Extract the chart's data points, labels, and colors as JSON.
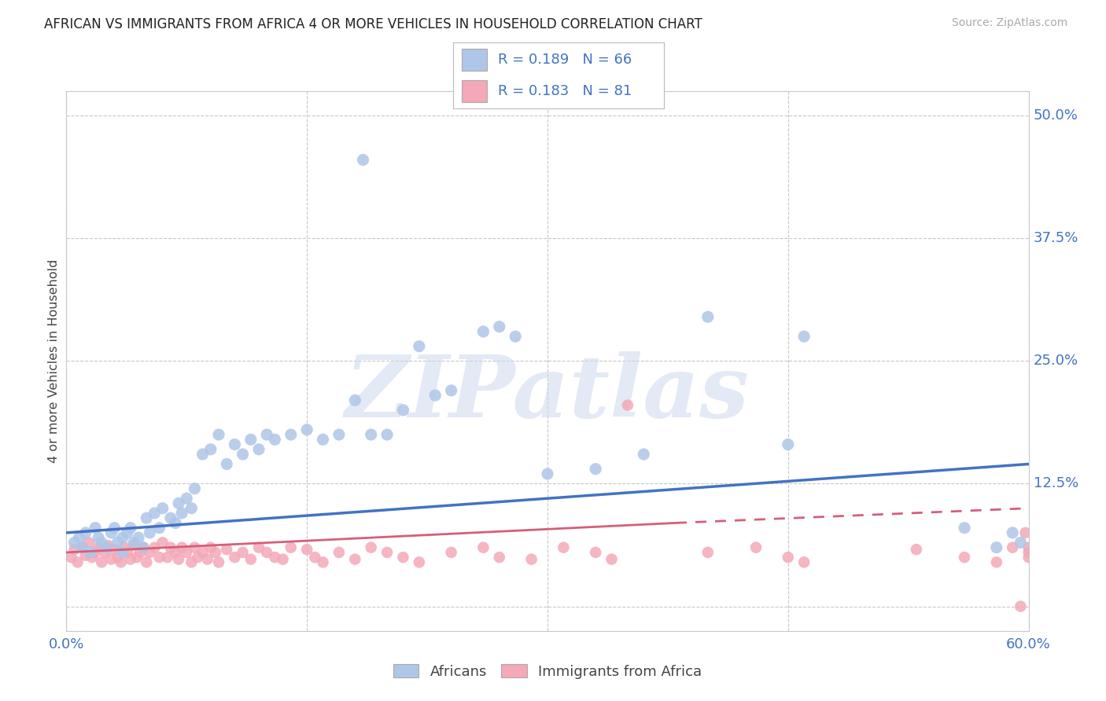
{
  "title": "AFRICAN VS IMMIGRANTS FROM AFRICA 4 OR MORE VEHICLES IN HOUSEHOLD CORRELATION CHART",
  "source": "Source: ZipAtlas.com",
  "ylabel": "4 or more Vehicles in Household",
  "legend_africans_R": "0.189",
  "legend_africans_N": "66",
  "legend_immigrants_R": "0.183",
  "legend_immigrants_N": "81",
  "color_africans": "#aec6e8",
  "color_africans_line": "#4472C4",
  "color_immigrants": "#f4a8b8",
  "color_immigrants_line": "#d4607a",
  "color_text_blue": "#4472C4",
  "color_text_pink": "#d4607a",
  "color_label_dark": "#444444",
  "watermark": "ZIPatlas",
  "background_color": "#ffffff",
  "grid_color": "#c8c8c8",
  "xlim": [
    0.0,
    0.6
  ],
  "ylim": [
    -0.025,
    0.525
  ],
  "ytick_values": [
    0.0,
    0.125,
    0.25,
    0.375,
    0.5
  ],
  "ytick_labels": [
    "0.0%",
    "12.5%",
    "25.0%",
    "37.5%",
    "50.0%"
  ],
  "xtick_values": [
    0.0,
    0.15,
    0.3,
    0.45,
    0.6
  ],
  "xtick_labels_show": [
    "0.0%",
    "",
    "",
    "",
    "60.0%"
  ],
  "line_af_x0": 0.0,
  "line_af_y0": 0.075,
  "line_af_x1": 0.6,
  "line_af_y1": 0.145,
  "line_im_solid_x0": 0.0,
  "line_im_solid_y0": 0.055,
  "line_im_solid_x1": 0.38,
  "line_im_solid_y1": 0.085,
  "line_im_dash_x0": 0.38,
  "line_im_dash_y0": 0.085,
  "line_im_dash_x1": 0.6,
  "line_im_dash_y1": 0.1,
  "africans_x": [
    0.005,
    0.008,
    0.01,
    0.012,
    0.015,
    0.018,
    0.02,
    0.022,
    0.025,
    0.028,
    0.03,
    0.032,
    0.035,
    0.035,
    0.038,
    0.04,
    0.042,
    0.045,
    0.048,
    0.05,
    0.052,
    0.055,
    0.058,
    0.06,
    0.065,
    0.068,
    0.07,
    0.072,
    0.075,
    0.078,
    0.08,
    0.085,
    0.09,
    0.095,
    0.1,
    0.105,
    0.11,
    0.115,
    0.12,
    0.125,
    0.13,
    0.14,
    0.15,
    0.16,
    0.17,
    0.18,
    0.185,
    0.19,
    0.2,
    0.21,
    0.22,
    0.23,
    0.24,
    0.26,
    0.27,
    0.28,
    0.3,
    0.33,
    0.36,
    0.4,
    0.45,
    0.46,
    0.56,
    0.58,
    0.59,
    0.595
  ],
  "africans_y": [
    0.065,
    0.07,
    0.06,
    0.075,
    0.055,
    0.08,
    0.07,
    0.065,
    0.06,
    0.075,
    0.08,
    0.065,
    0.07,
    0.055,
    0.075,
    0.08,
    0.065,
    0.07,
    0.06,
    0.09,
    0.075,
    0.095,
    0.08,
    0.1,
    0.09,
    0.085,
    0.105,
    0.095,
    0.11,
    0.1,
    0.12,
    0.155,
    0.16,
    0.175,
    0.145,
    0.165,
    0.155,
    0.17,
    0.16,
    0.175,
    0.17,
    0.175,
    0.18,
    0.17,
    0.175,
    0.21,
    0.455,
    0.175,
    0.175,
    0.2,
    0.265,
    0.215,
    0.22,
    0.28,
    0.285,
    0.275,
    0.135,
    0.14,
    0.155,
    0.295,
    0.165,
    0.275,
    0.08,
    0.06,
    0.075,
    0.065
  ],
  "immigrants_x": [
    0.003,
    0.005,
    0.007,
    0.01,
    0.012,
    0.014,
    0.016,
    0.018,
    0.02,
    0.022,
    0.024,
    0.026,
    0.028,
    0.03,
    0.032,
    0.034,
    0.036,
    0.038,
    0.04,
    0.042,
    0.044,
    0.046,
    0.048,
    0.05,
    0.052,
    0.055,
    0.058,
    0.06,
    0.063,
    0.065,
    0.068,
    0.07,
    0.072,
    0.075,
    0.078,
    0.08,
    0.082,
    0.085,
    0.088,
    0.09,
    0.093,
    0.095,
    0.1,
    0.105,
    0.11,
    0.115,
    0.12,
    0.125,
    0.13,
    0.135,
    0.14,
    0.15,
    0.155,
    0.16,
    0.17,
    0.18,
    0.19,
    0.2,
    0.21,
    0.22,
    0.24,
    0.26,
    0.27,
    0.29,
    0.31,
    0.33,
    0.34,
    0.35,
    0.4,
    0.43,
    0.45,
    0.46,
    0.53,
    0.56,
    0.58,
    0.59,
    0.595,
    0.598,
    0.6,
    0.6,
    0.6
  ],
  "immigrants_y": [
    0.05,
    0.058,
    0.045,
    0.06,
    0.052,
    0.065,
    0.05,
    0.055,
    0.06,
    0.045,
    0.055,
    0.062,
    0.048,
    0.058,
    0.05,
    0.045,
    0.06,
    0.055,
    0.048,
    0.062,
    0.05,
    0.055,
    0.06,
    0.045,
    0.055,
    0.06,
    0.05,
    0.065,
    0.05,
    0.06,
    0.055,
    0.048,
    0.06,
    0.055,
    0.045,
    0.06,
    0.05,
    0.055,
    0.048,
    0.06,
    0.055,
    0.045,
    0.058,
    0.05,
    0.055,
    0.048,
    0.06,
    0.055,
    0.05,
    0.048,
    0.06,
    0.058,
    0.05,
    0.045,
    0.055,
    0.048,
    0.06,
    0.055,
    0.05,
    0.045,
    0.055,
    0.06,
    0.05,
    0.048,
    0.06,
    0.055,
    0.048,
    0.205,
    0.055,
    0.06,
    0.05,
    0.045,
    0.058,
    0.05,
    0.045,
    0.06,
    0.0,
    0.075,
    0.06,
    0.055,
    0.05
  ]
}
